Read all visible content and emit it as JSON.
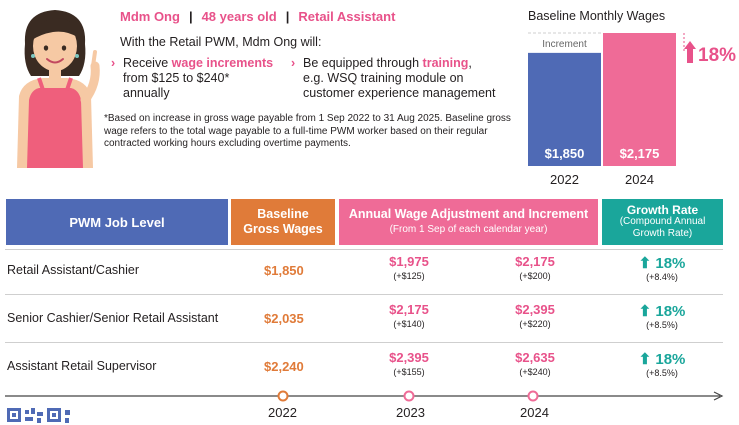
{
  "persona": {
    "name": "Mdm Ong",
    "age": "48 years old",
    "role": "Retail Assistant"
  },
  "intro": "With the Retail PWM, Mdm Ong will:",
  "bullets": [
    {
      "pre": "Receive ",
      "highlight": "wage increments",
      "line2": "from $125 to $240*",
      "line3": "annually"
    },
    {
      "pre": "Be equipped through ",
      "highlight": "training",
      "post": ",",
      "line2": "e.g. WSQ training module on",
      "line3": "customer experience management"
    }
  ],
  "note": "*Based on increase in gross wage payable from 1 Sep 2022 to 31 Aug 2025. Baseline gross wage refers to the total wage payable to a full-time PWM worker based on their regular contracted working hours excluding overtime payments.",
  "chart_data": [
    {
      "type": "bar",
      "title": "Baseline Monthly Wages",
      "categories": [
        "2022",
        "2024"
      ],
      "values": [
        1850,
        2175
      ],
      "value_labels": [
        "$1,850",
        "$2,175"
      ],
      "annotation_increment": "Increment",
      "growth_label": "18%",
      "colors": [
        "#4f6ab5",
        "#ef6b97"
      ],
      "accent": "#e8528a"
    },
    {
      "type": "table",
      "headers": {
        "job_level": "PWM Job Level",
        "baseline": [
          "Baseline",
          "Gross Wages"
        ],
        "adjust": [
          "Annual Wage Adjustment and Increment",
          "(From 1 Sep of each calendar year)"
        ],
        "growth": [
          "Growth Rate",
          "(Compound Annual",
          "Growth Rate)"
        ]
      },
      "header_colors": {
        "job_level": "#4f6ab5",
        "baseline": "#e07b39",
        "adjust": "#ef6b97",
        "growth": "#1aa69b"
      },
      "rows": [
        {
          "level": "Retail Assistant/Cashier",
          "baseline": "$1,850",
          "y2023": "$1,975",
          "inc2023": "(+$125)",
          "y2024": "$2,175",
          "inc2024": "(+$200)",
          "growth": "18%",
          "cagr": "(+8.4%)"
        },
        {
          "level": "Senior Cashier/Senior Retail Assistant",
          "baseline": "$2,035",
          "y2023": "$2,175",
          "inc2023": "(+$140)",
          "y2024": "$2,395",
          "inc2024": "(+$220)",
          "growth": "18%",
          "cagr": "(+8.5%)"
        },
        {
          "level": "Assistant Retail Supervisor",
          "baseline": "$2,240",
          "y2023": "$2,395",
          "inc2023": "(+$155)",
          "y2024": "$2,635",
          "inc2024": "(+$240)",
          "growth": "18%",
          "cagr": "(+8.5%)"
        }
      ],
      "timeline": [
        "2022",
        "2023",
        "2024"
      ]
    }
  ]
}
